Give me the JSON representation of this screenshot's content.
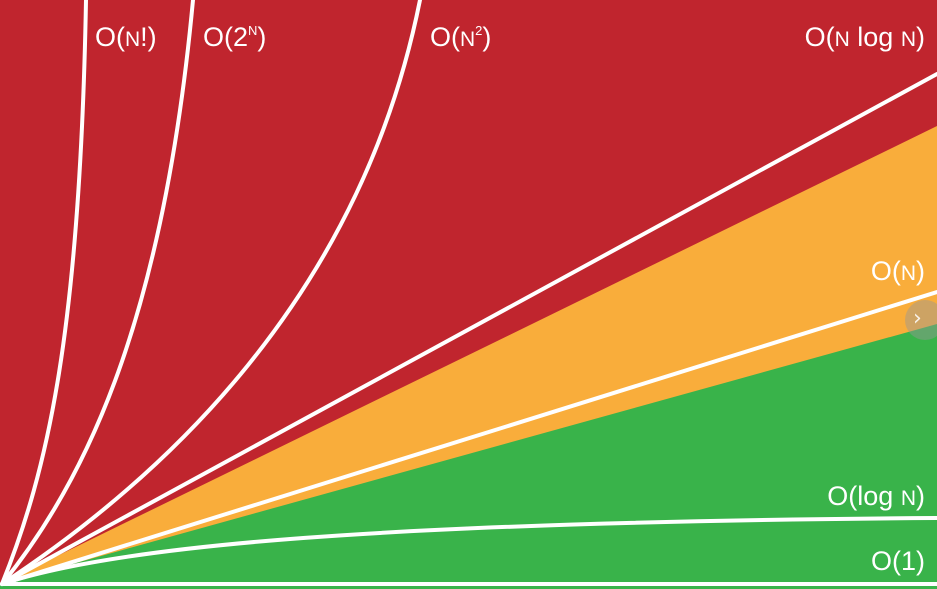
{
  "colors": {
    "bad": "#c0252e",
    "fair": "#f9ad3b",
    "good": "#39b34a",
    "line": "#ffffff"
  },
  "labels": {
    "factorial": {
      "prefix": "O(",
      "n": "N",
      "suffix": "!)"
    },
    "exponential": {
      "prefix": "O(2",
      "sup": "N",
      "suffix": ")"
    },
    "quadratic": {
      "prefix": "O(",
      "n": "N",
      "sup": "2",
      "suffix": ")"
    },
    "nlogn": {
      "prefix": "O(",
      "n": "N",
      "mid": " log ",
      "n2": "N",
      "suffix": ")"
    },
    "linear": {
      "prefix": "O(",
      "n": "N",
      "suffix": ")"
    },
    "logn": {
      "prefix": "O(log ",
      "n": "N",
      "suffix": ")"
    },
    "constant": {
      "text": "O(1)"
    }
  },
  "controls": {
    "next_icon": "chevron-right-icon",
    "next_glyph": "›"
  }
}
